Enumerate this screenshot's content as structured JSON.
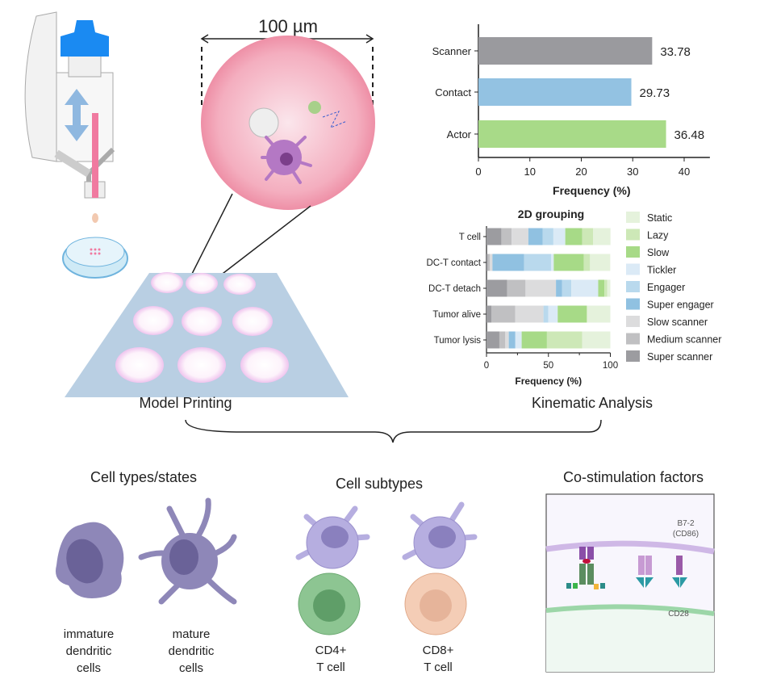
{
  "top_left": {
    "scale_label": "100 µm",
    "caption": "Model Printing"
  },
  "top_right": {
    "caption": "Kinematic Analysis"
  },
  "chart_data": [
    {
      "type": "bar",
      "orientation": "horizontal",
      "categories": [
        "Scanner",
        "Contact",
        "Actor"
      ],
      "values": [
        33.78,
        29.73,
        36.48
      ],
      "value_labels": [
        "33.78",
        "29.73",
        "36.48"
      ],
      "colors": [
        "#9a9a9e",
        "#93c2e2",
        "#a8da88"
      ],
      "title": "",
      "xlabel": "Frequency (%)",
      "xlim": [
        0,
        45
      ],
      "xticks": [
        "0",
        "10",
        "20",
        "30",
        "40"
      ],
      "xtick_values": [
        0,
        10,
        20,
        30,
        40
      ]
    },
    {
      "type": "bar",
      "orientation": "horizontal",
      "stacked": true,
      "title": "2D grouping",
      "xlabel": "Frequency (%)",
      "xlim": [
        0,
        100
      ],
      "xticks": [
        "0",
        "50",
        "100"
      ],
      "xtick_values": [
        0,
        50,
        100
      ],
      "categories": [
        "T cell",
        "DC-T contact",
        "DC-T detach",
        "Tumor alive",
        "Tumor lysis"
      ],
      "legend_position": "right",
      "series": [
        {
          "name": "Super scanner",
          "color": "#9c9ca0",
          "values": [
            12,
            1,
            16.7,
            3.9,
            10.4
          ]
        },
        {
          "name": "Medium scanner",
          "color": "#c0c0c2",
          "values": [
            8.3,
            1.6,
            14.8,
            19.3,
            4.8
          ]
        },
        {
          "name": "Slow scanner",
          "color": "#dcdcdd",
          "values": [
            13.5,
            2.2,
            24.6,
            22.8,
            2.8
          ]
        },
        {
          "name": "Super engager",
          "color": "#90c1e1",
          "values": [
            11.5,
            25.6,
            4.8,
            0,
            5.2
          ]
        },
        {
          "name": "Engager",
          "color": "#b9d9ed",
          "values": [
            8.7,
            21.7,
            7.6,
            3.9,
            0.2
          ]
        },
        {
          "name": "Tickler",
          "color": "#dbeaf6",
          "values": [
            9.6,
            2.2,
            21.7,
            7.6,
            5
          ]
        },
        {
          "name": "Slow",
          "color": "#a7da87",
          "values": [
            13.7,
            24.3,
            5,
            23.3,
            20.4
          ]
        },
        {
          "name": "Lazy",
          "color": "#cde8b7",
          "values": [
            8.7,
            5,
            2.2,
            0.6,
            28.5
          ]
        },
        {
          "name": "Static",
          "color": "#e5f2dc",
          "values": [
            14.1,
            16.3,
            2.6,
            18.6,
            22.7
          ]
        }
      ]
    }
  ],
  "bottom": {
    "cell_types": {
      "title": "Cell types/states",
      "labels": [
        [
          "immature",
          "dendritic",
          "cells"
        ],
        [
          "mature",
          "dendritic",
          "cells"
        ]
      ]
    },
    "cell_subtypes": {
      "title": "Cell subtypes",
      "labels": [
        [
          "CD4+",
          "T cell"
        ],
        [
          "CD8+",
          "T cell"
        ]
      ]
    },
    "costim": {
      "title": "Co-stimulation factors",
      "b7_label": [
        "B7-2",
        "(CD86)"
      ],
      "cd28_label": "CD28"
    }
  }
}
